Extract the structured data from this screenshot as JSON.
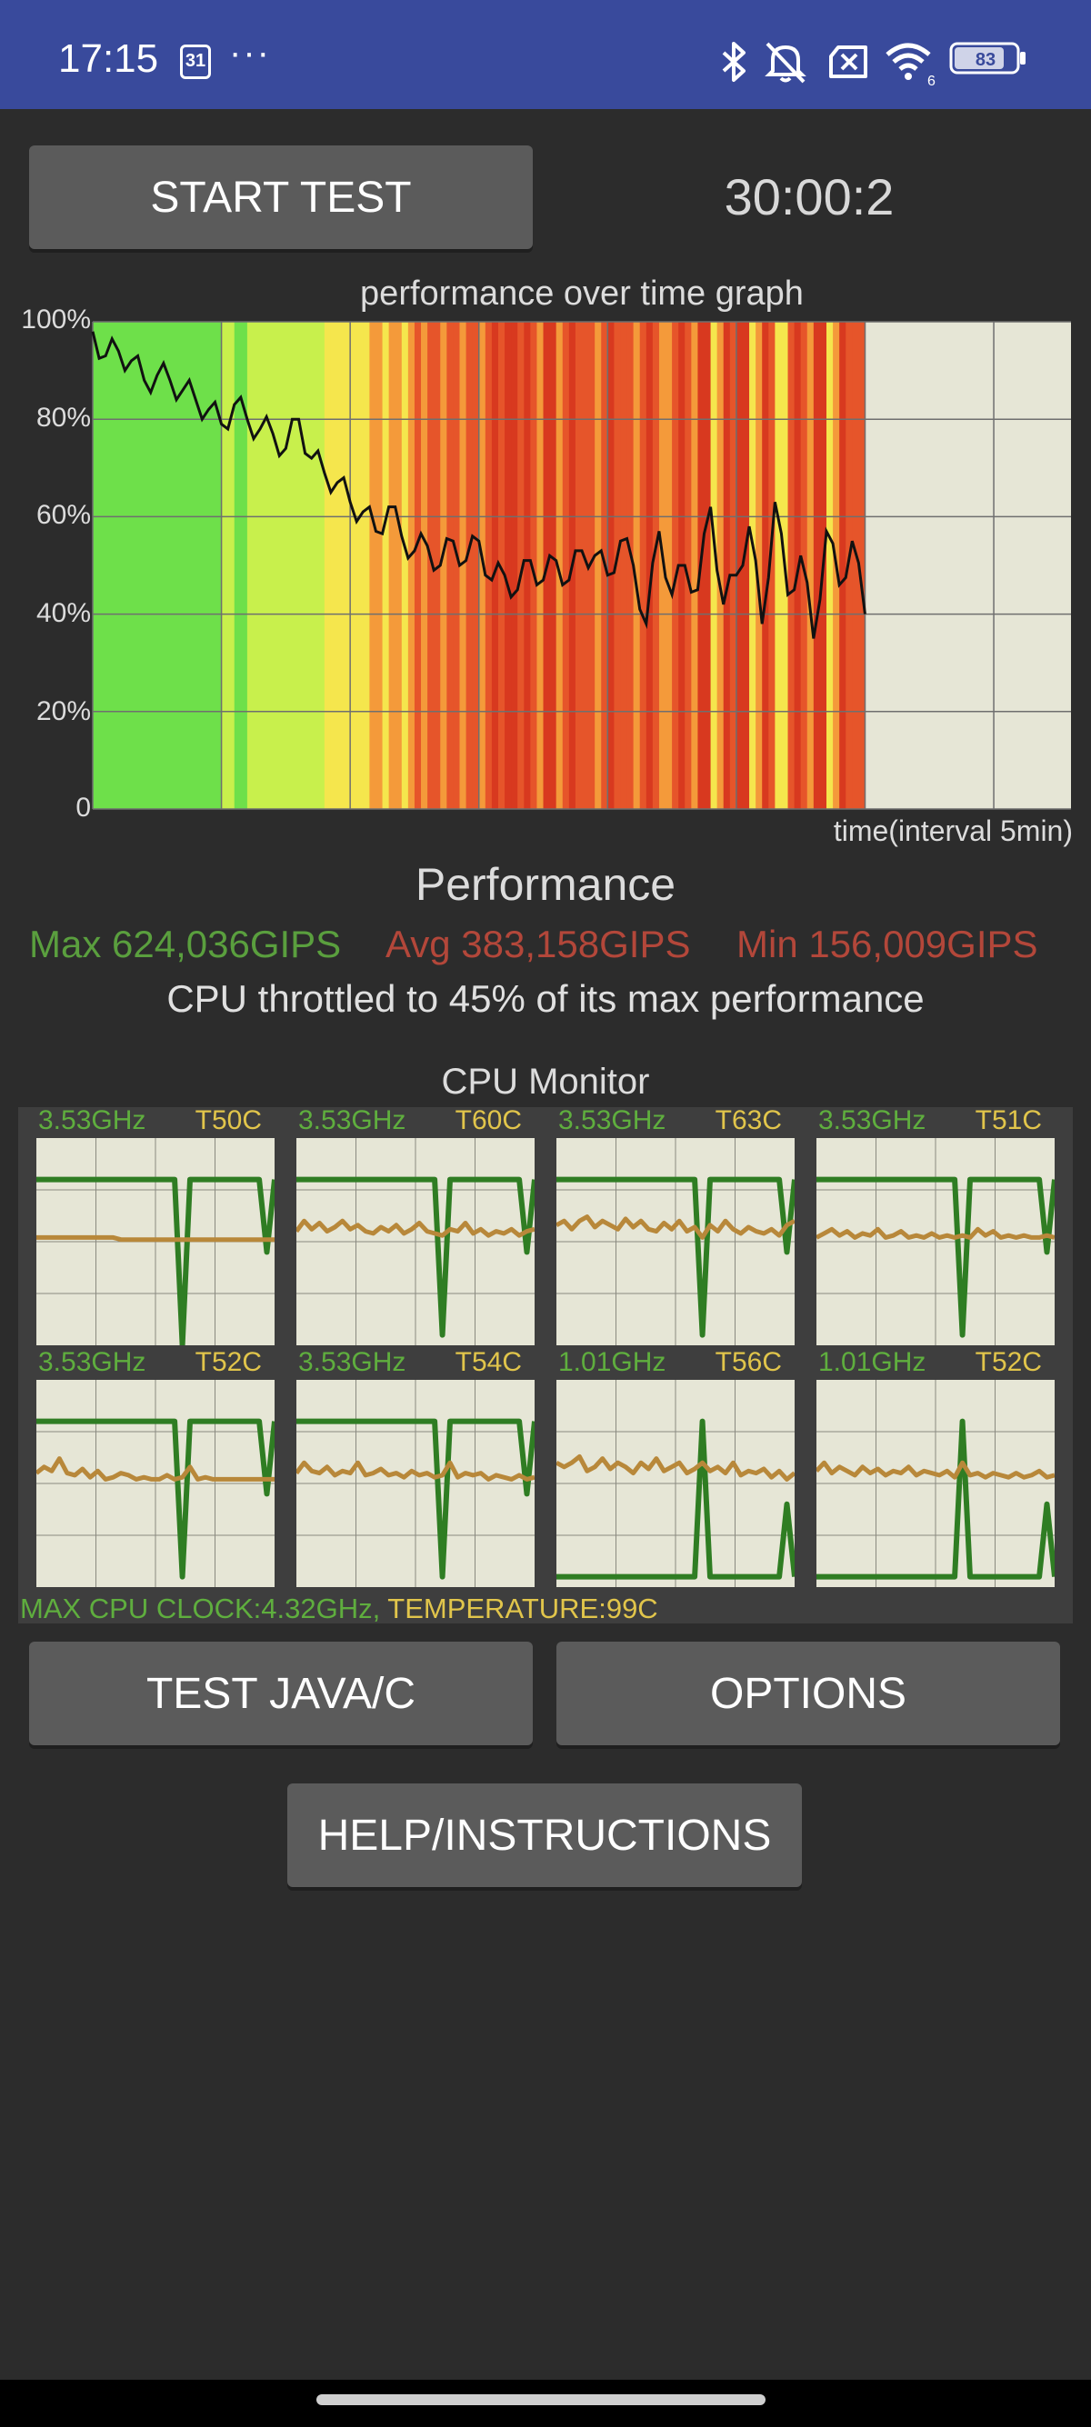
{
  "status_bar": {
    "time": "17:15",
    "calendar_day": "31",
    "more": "···",
    "battery": "83",
    "wifi_badge": "6",
    "icons": [
      "calendar-icon",
      "more-icon",
      "bluetooth-icon",
      "mute-icon",
      "no-sim-icon",
      "wifi-icon",
      "battery-icon"
    ]
  },
  "controls": {
    "start_label": "START TEST",
    "timer": "30:00:2"
  },
  "chart_data": {
    "type": "line",
    "title": "performance over time graph",
    "xlabel": "time(interval 5min)",
    "ylabel": "",
    "ylim": [
      0,
      100
    ],
    "yticks": [
      "100%",
      "80%",
      "60%",
      "40%",
      "20%",
      "0"
    ],
    "grid": true,
    "x_major_interval_min": 5,
    "xlim_min": [
      0,
      38
    ],
    "series": [
      {
        "x": [
          0,
          0.5,
          1,
          1.5,
          2,
          2.5,
          3,
          3.5,
          4,
          4.5,
          5,
          5.5,
          6,
          6.5,
          7,
          7.5,
          8,
          8.5,
          9,
          9.5,
          10,
          10.5,
          11,
          11.5,
          12,
          12.5,
          13,
          13.5,
          14,
          14.5,
          15,
          15.5,
          16,
          16.5,
          17,
          17.5,
          18,
          18.5,
          19,
          19.5,
          20,
          20.5,
          21,
          21.5,
          22,
          22.5,
          23,
          23.5,
          24,
          24.5,
          25,
          25.5,
          26,
          26.5,
          27,
          27.5,
          28,
          28.5,
          29,
          29.5,
          30
        ],
        "values": [
          98,
          93,
          94,
          92,
          88,
          89,
          88,
          86,
          84,
          82,
          79,
          83,
          80,
          78,
          77,
          74,
          80,
          72,
          69,
          67,
          63,
          61,
          57,
          62,
          56,
          53,
          54,
          50,
          55,
          51,
          55,
          47,
          48,
          45,
          51,
          47,
          51,
          47,
          53,
          52,
          48,
          55,
          50,
          38,
          57,
          44,
          50,
          45,
          62,
          42,
          48,
          58,
          38,
          63,
          44,
          52,
          35,
          57,
          46,
          55,
          40
        ]
      }
    ],
    "bar_colors_stops": [
      "#6ee04a",
      "#c8f04c",
      "#f5e64d",
      "#f49a3a",
      "#e6552a",
      "#d8391f"
    ]
  },
  "performance": {
    "title": "Performance",
    "max": "Max 624,036GIPS",
    "avg": "Avg 383,158GIPS",
    "min": "Min 156,009GIPS",
    "throttled": "CPU throttled to 45% of its max performance"
  },
  "cpu_monitor": {
    "title": "CPU Monitor",
    "cores": [
      {
        "freq": "3.53GHz",
        "temp": "T50C",
        "freq_level": [
          0.8,
          0.8,
          0.8,
          0.8,
          0.8,
          0.8,
          0.8,
          0.8,
          0.8,
          0.8,
          0.8,
          0.8,
          0.8,
          0.8,
          0.8,
          0.8,
          0.8,
          0.8,
          0.8,
          0.0,
          0.8,
          0.8,
          0.8,
          0.8,
          0.8,
          0.8,
          0.8,
          0.8,
          0.8,
          0.8,
          0.45,
          0.8
        ],
        "temp_level": [
          0.52,
          0.52,
          0.52,
          0.52,
          0.52,
          0.52,
          0.52,
          0.52,
          0.52,
          0.52,
          0.52,
          0.51,
          0.51,
          0.51,
          0.51,
          0.51,
          0.51,
          0.51,
          0.51,
          0.51,
          0.51,
          0.51,
          0.51,
          0.51,
          0.51,
          0.51,
          0.51,
          0.51,
          0.51,
          0.51,
          0.51,
          0.51
        ]
      },
      {
        "freq": "3.53GHz",
        "temp": "T60C",
        "freq_level": [
          0.8,
          0.8,
          0.8,
          0.8,
          0.8,
          0.8,
          0.8,
          0.8,
          0.8,
          0.8,
          0.8,
          0.8,
          0.8,
          0.8,
          0.8,
          0.8,
          0.8,
          0.8,
          0.8,
          0.05,
          0.8,
          0.8,
          0.8,
          0.8,
          0.8,
          0.8,
          0.8,
          0.8,
          0.8,
          0.8,
          0.45,
          0.8
        ],
        "temp_level": [
          0.55,
          0.6,
          0.56,
          0.59,
          0.55,
          0.57,
          0.6,
          0.56,
          0.58,
          0.55,
          0.54,
          0.57,
          0.55,
          0.58,
          0.54,
          0.56,
          0.59,
          0.55,
          0.54,
          0.53,
          0.56,
          0.55,
          0.59,
          0.54,
          0.56,
          0.53,
          0.55,
          0.54,
          0.56,
          0.53,
          0.55,
          0.56
        ]
      },
      {
        "freq": "3.53GHz",
        "temp": "T63C",
        "freq_level": [
          0.8,
          0.8,
          0.8,
          0.8,
          0.8,
          0.8,
          0.8,
          0.8,
          0.8,
          0.8,
          0.8,
          0.8,
          0.8,
          0.8,
          0.8,
          0.8,
          0.8,
          0.8,
          0.8,
          0.05,
          0.8,
          0.8,
          0.8,
          0.8,
          0.8,
          0.8,
          0.8,
          0.8,
          0.8,
          0.8,
          0.45,
          0.8
        ],
        "temp_level": [
          0.58,
          0.6,
          0.56,
          0.6,
          0.62,
          0.57,
          0.6,
          0.58,
          0.56,
          0.61,
          0.57,
          0.6,
          0.56,
          0.55,
          0.59,
          0.56,
          0.6,
          0.55,
          0.57,
          0.52,
          0.58,
          0.55,
          0.6,
          0.56,
          0.54,
          0.57,
          0.55,
          0.54,
          0.56,
          0.53,
          0.58,
          0.6
        ]
      },
      {
        "freq": "3.53GHz",
        "temp": "T51C",
        "freq_level": [
          0.8,
          0.8,
          0.8,
          0.8,
          0.8,
          0.8,
          0.8,
          0.8,
          0.8,
          0.8,
          0.8,
          0.8,
          0.8,
          0.8,
          0.8,
          0.8,
          0.8,
          0.8,
          0.8,
          0.05,
          0.8,
          0.8,
          0.8,
          0.8,
          0.8,
          0.8,
          0.8,
          0.8,
          0.8,
          0.8,
          0.45,
          0.8
        ],
        "temp_level": [
          0.52,
          0.54,
          0.56,
          0.53,
          0.55,
          0.52,
          0.54,
          0.53,
          0.56,
          0.52,
          0.53,
          0.55,
          0.52,
          0.53,
          0.52,
          0.54,
          0.52,
          0.53,
          0.52,
          0.53,
          0.52,
          0.56,
          0.53,
          0.55,
          0.52,
          0.53,
          0.52,
          0.53,
          0.52,
          0.52,
          0.53,
          0.52
        ]
      },
      {
        "freq": "3.53GHz",
        "temp": "T52C",
        "freq_level": [
          0.8,
          0.8,
          0.8,
          0.8,
          0.8,
          0.8,
          0.8,
          0.8,
          0.8,
          0.8,
          0.8,
          0.8,
          0.8,
          0.8,
          0.8,
          0.8,
          0.8,
          0.8,
          0.8,
          0.05,
          0.8,
          0.8,
          0.8,
          0.8,
          0.8,
          0.8,
          0.8,
          0.8,
          0.8,
          0.8,
          0.45,
          0.8
        ],
        "temp_level": [
          0.55,
          0.58,
          0.56,
          0.62,
          0.55,
          0.54,
          0.57,
          0.53,
          0.56,
          0.52,
          0.53,
          0.55,
          0.54,
          0.52,
          0.53,
          0.52,
          0.52,
          0.54,
          0.52,
          0.53,
          0.58,
          0.52,
          0.53,
          0.52,
          0.52,
          0.52,
          0.52,
          0.52,
          0.52,
          0.52,
          0.52,
          0.52
        ]
      },
      {
        "freq": "3.53GHz",
        "temp": "T54C",
        "freq_level": [
          0.8,
          0.8,
          0.8,
          0.8,
          0.8,
          0.8,
          0.8,
          0.8,
          0.8,
          0.8,
          0.8,
          0.8,
          0.8,
          0.8,
          0.8,
          0.8,
          0.8,
          0.8,
          0.8,
          0.05,
          0.8,
          0.8,
          0.8,
          0.8,
          0.8,
          0.8,
          0.8,
          0.8,
          0.8,
          0.8,
          0.45,
          0.8
        ],
        "temp_level": [
          0.55,
          0.6,
          0.56,
          0.55,
          0.58,
          0.54,
          0.56,
          0.55,
          0.6,
          0.54,
          0.55,
          0.57,
          0.54,
          0.55,
          0.53,
          0.56,
          0.54,
          0.55,
          0.53,
          0.54,
          0.6,
          0.53,
          0.55,
          0.54,
          0.55,
          0.52,
          0.54,
          0.53,
          0.52,
          0.54,
          0.52,
          0.53
        ]
      },
      {
        "freq": "1.01GHz",
        "temp": "T56C",
        "freq_level": [
          0.05,
          0.05,
          0.05,
          0.05,
          0.05,
          0.05,
          0.05,
          0.05,
          0.05,
          0.05,
          0.05,
          0.05,
          0.05,
          0.05,
          0.05,
          0.05,
          0.05,
          0.05,
          0.05,
          0.8,
          0.05,
          0.05,
          0.05,
          0.05,
          0.05,
          0.05,
          0.05,
          0.05,
          0.05,
          0.05,
          0.4,
          0.05
        ],
        "temp_level": [
          0.6,
          0.58,
          0.6,
          0.63,
          0.56,
          0.58,
          0.62,
          0.57,
          0.6,
          0.58,
          0.55,
          0.6,
          0.57,
          0.62,
          0.56,
          0.58,
          0.6,
          0.55,
          0.57,
          0.6,
          0.56,
          0.58,
          0.55,
          0.6,
          0.54,
          0.56,
          0.55,
          0.57,
          0.53,
          0.56,
          0.52,
          0.55
        ]
      },
      {
        "freq": "1.01GHz",
        "temp": "T52C",
        "freq_level": [
          0.05,
          0.05,
          0.05,
          0.05,
          0.05,
          0.05,
          0.05,
          0.05,
          0.05,
          0.05,
          0.05,
          0.05,
          0.05,
          0.05,
          0.05,
          0.05,
          0.05,
          0.05,
          0.05,
          0.8,
          0.05,
          0.05,
          0.05,
          0.05,
          0.05,
          0.05,
          0.05,
          0.05,
          0.05,
          0.05,
          0.4,
          0.05
        ],
        "temp_level": [
          0.56,
          0.6,
          0.55,
          0.58,
          0.56,
          0.54,
          0.58,
          0.55,
          0.57,
          0.54,
          0.56,
          0.55,
          0.58,
          0.54,
          0.56,
          0.55,
          0.54,
          0.56,
          0.53,
          0.6,
          0.54,
          0.55,
          0.53,
          0.55,
          0.54,
          0.53,
          0.55,
          0.53,
          0.54,
          0.56,
          0.53,
          0.54
        ]
      }
    ],
    "footer_clock": "MAX CPU CLOCK:4.32GHz,",
    "footer_temp": " TEMPERATURE:99C"
  },
  "buttons": {
    "test_java": "TEST JAVA/C",
    "options": "OPTIONS",
    "help": "HELP/INSTRUCTIONS"
  }
}
